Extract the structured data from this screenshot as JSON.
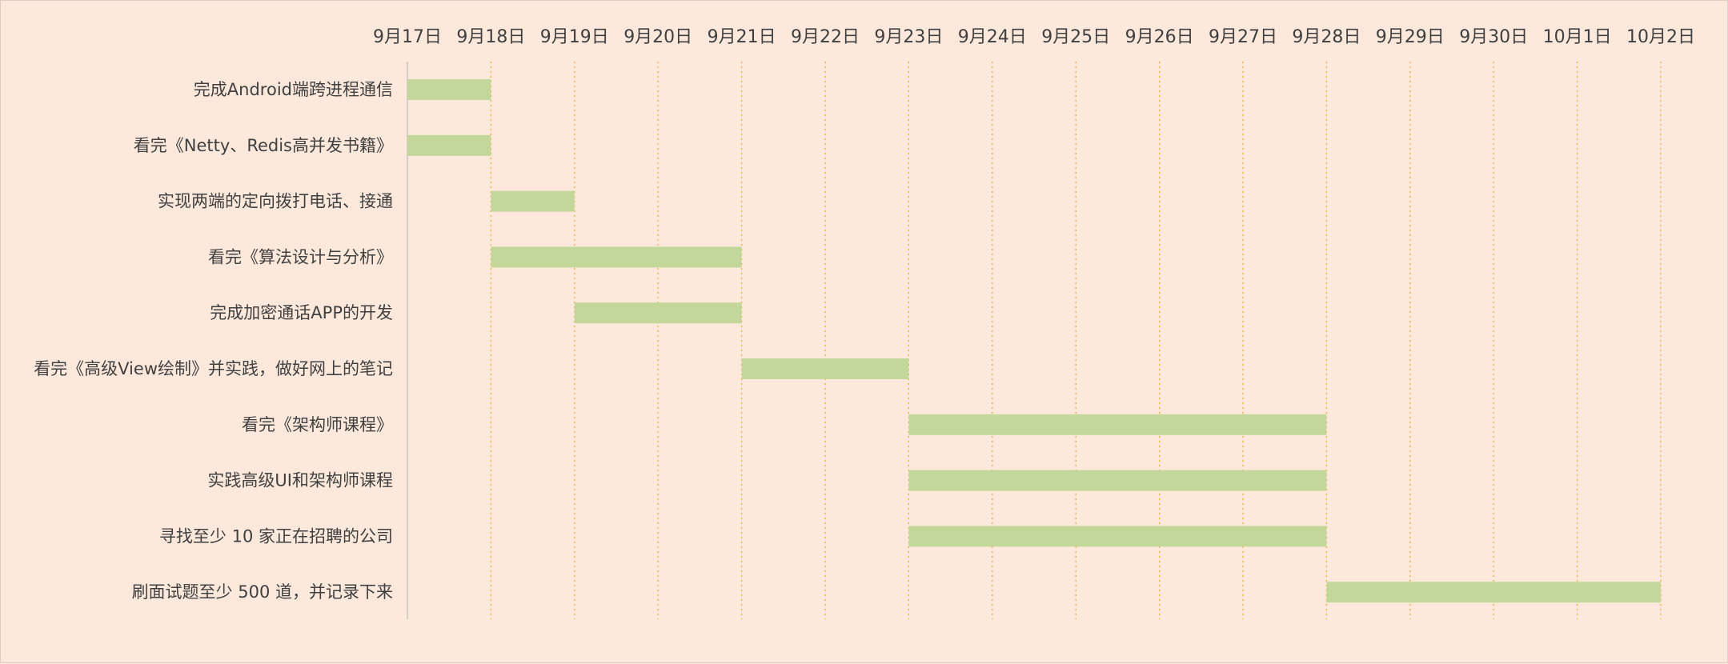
{
  "chart_data": {
    "type": "bar",
    "subtype": "gantt",
    "title": "",
    "xlabel": "",
    "ylabel": "",
    "x_ticks": [
      "9月17日",
      "9月18日",
      "9月19日",
      "9月20日",
      "9月21日",
      "9月22日",
      "9月23日",
      "9月24日",
      "9月25日",
      "9月26日",
      "9月27日",
      "9月28日",
      "9月29日",
      "9月30日",
      "10月1日",
      "10月2日"
    ],
    "x_axis_position": "top",
    "grid": "vertical-dotted",
    "legend": "none",
    "colors": {
      "background": "#fde9dc",
      "bar": "#c4d79b",
      "gridline": "#f2a53a",
      "axis": "#bfbfbf",
      "text": "#404040"
    },
    "tasks": [
      {
        "name": "完成Android端跨进程通信",
        "start": "9月17日",
        "end": "9月18日"
      },
      {
        "name": "看完《Netty、Redis高并发书籍》",
        "start": "9月17日",
        "end": "9月18日"
      },
      {
        "name": "实现两端的定向拨打电话、接通",
        "start": "9月18日",
        "end": "9月19日"
      },
      {
        "name": "看完《算法设计与分析》",
        "start": "9月18日",
        "end": "9月21日"
      },
      {
        "name": "完成加密通话APP的开发",
        "start": "9月19日",
        "end": "9月21日"
      },
      {
        "name": "看完《高级View绘制》并实践，做好网上的笔记",
        "start": "9月21日",
        "end": "9月23日"
      },
      {
        "name": "看完《架构师课程》",
        "start": "9月23日",
        "end": "9月28日"
      },
      {
        "name": "实践高级UI和架构师课程",
        "start": "9月23日",
        "end": "9月28日"
      },
      {
        "name": "寻找至少 10 家正在招聘的公司",
        "start": "9月23日",
        "end": "9月28日"
      },
      {
        "name": "刷面试题至少 500 道，并记录下来",
        "start": "9月28日",
        "end": "10月2日"
      }
    ]
  }
}
